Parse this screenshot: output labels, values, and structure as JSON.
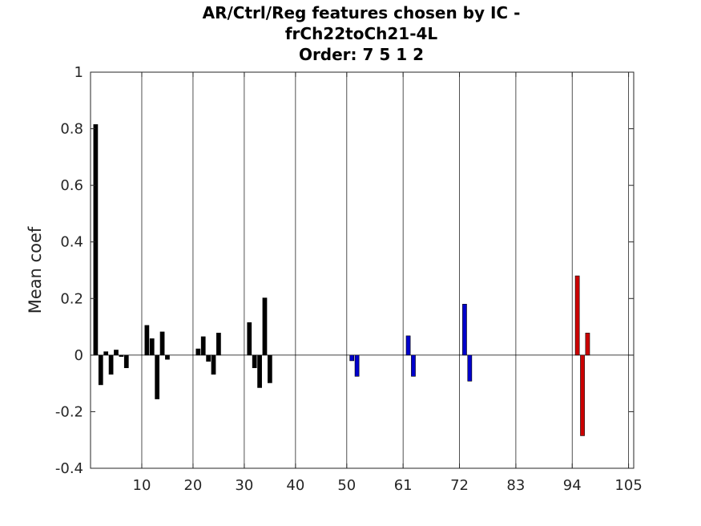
{
  "chart_data": {
    "type": "bar",
    "title_lines": [
      "AR/Ctrl/Reg features chosen by IC -",
      "frCh22toCh21-4L",
      "Order: 7 5 1 2"
    ],
    "xlabel": "",
    "ylabel": "Mean coef",
    "xlim": [
      0,
      106
    ],
    "ylim": [
      -0.4,
      1
    ],
    "xticks": [
      10,
      20,
      30,
      40,
      50,
      61,
      72,
      83,
      94,
      105
    ],
    "yticks": [
      -0.4,
      -0.2,
      0,
      0.2,
      0.4,
      0.6,
      0.8,
      1
    ],
    "ytick_labels": [
      "-0.4",
      "-0.2",
      "0",
      "0.2",
      "0.4",
      "0.6",
      "0.8",
      "1"
    ],
    "group_boundaries": [
      10,
      20,
      30,
      40,
      50,
      61,
      72,
      83,
      94,
      105
    ],
    "grid": "vertical",
    "bar_width": 0.8,
    "series": [
      {
        "color": "#000000",
        "x": [
          1,
          2,
          3,
          4,
          5,
          6,
          7,
          11,
          12,
          13,
          14,
          15,
          21,
          22,
          23,
          24,
          25,
          31,
          32,
          33,
          34,
          35
        ],
        "values": [
          0.815,
          -0.105,
          0.012,
          -0.068,
          0.018,
          -0.005,
          -0.045,
          0.105,
          0.058,
          -0.155,
          0.082,
          -0.015,
          0.022,
          0.065,
          -0.022,
          -0.068,
          0.078,
          0.115,
          -0.045,
          -0.115,
          0.202,
          -0.098
        ]
      },
      {
        "color": "#0000cc",
        "x": [
          51,
          52,
          62,
          63,
          73,
          74
        ],
        "values": [
          -0.02,
          -0.075,
          0.068,
          -0.075,
          0.18,
          -0.092
        ]
      },
      {
        "color": "#cc0000",
        "x": [
          95,
          96,
          97
        ],
        "values": [
          0.28,
          -0.285,
          0.078
        ]
      }
    ]
  }
}
